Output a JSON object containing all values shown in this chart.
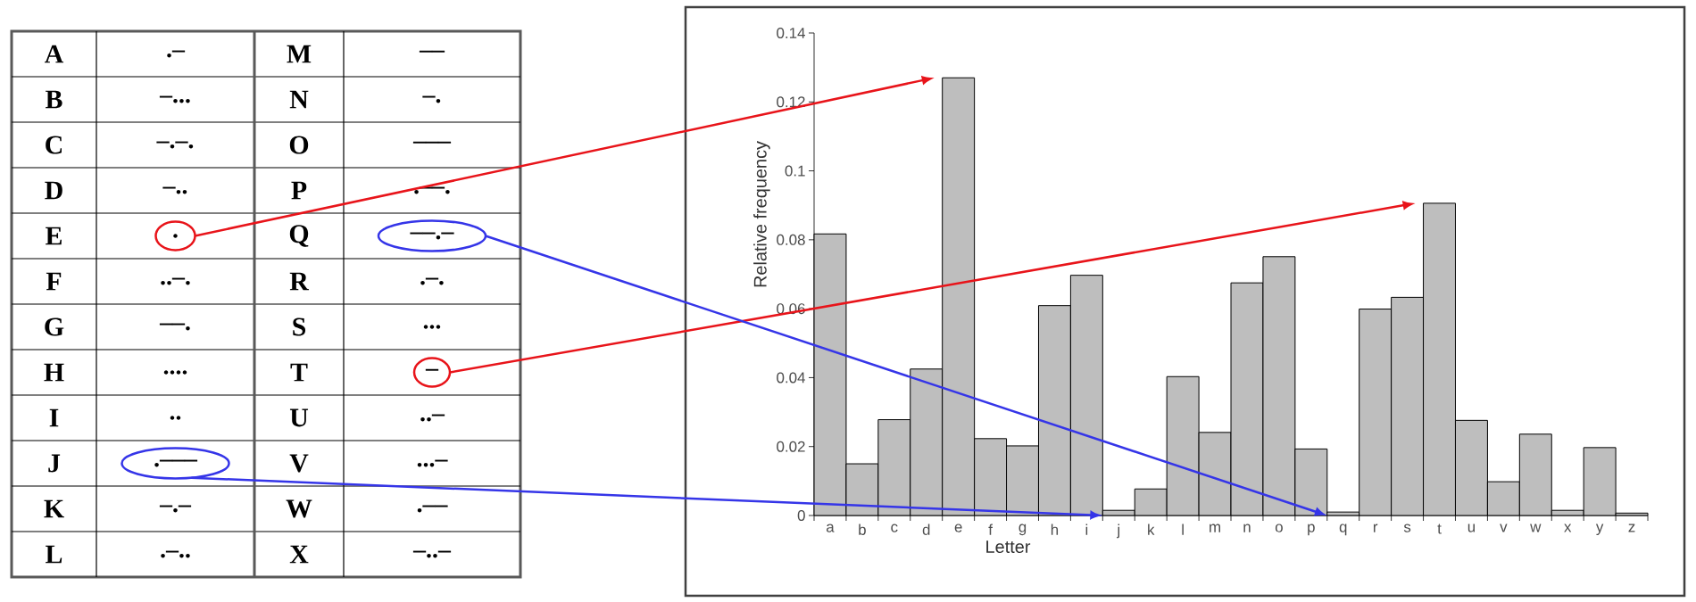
{
  "chart_data": [
    {
      "type": "other",
      "annotations": [
        "A",
        ".–",
        "M",
        "––",
        "B",
        "–...",
        "N",
        "–.",
        "C",
        "–.–.",
        "O",
        "–––",
        "D",
        "–..",
        "P",
        ".––.",
        "E",
        ".",
        "Q",
        "––.–",
        "F",
        "..–.",
        "R",
        ".–.",
        "G",
        "––.",
        "S",
        "...",
        "H",
        "....",
        "T",
        "–",
        "I",
        "..",
        "U",
        "..–",
        "J",
        ".–––",
        "V",
        "...–",
        "K",
        "–.–",
        "W",
        ".––",
        "L",
        ".–..",
        "X",
        "–..–"
      ]
    },
    {
      "type": "bar",
      "xlabel": "Letter",
      "ylabel": "Relative frequency",
      "color": "#bebebe",
      "categories": [
        "a",
        "b",
        "c",
        "d",
        "e",
        "f",
        "g",
        "h",
        "i",
        "j",
        "k",
        "l",
        "m",
        "n",
        "o",
        "p",
        "q",
        "r",
        "s",
        "t",
        "u",
        "v",
        "w",
        "x",
        "y",
        "z"
      ],
      "values": [
        0.0817,
        0.015,
        0.0278,
        0.0425,
        0.127,
        0.0223,
        0.0202,
        0.0609,
        0.0697,
        0.0015,
        0.0077,
        0.0403,
        0.0241,
        0.0675,
        0.0751,
        0.0193,
        0.001,
        0.0599,
        0.0633,
        0.0906,
        0.0276,
        0.0098,
        0.0236,
        0.0015,
        0.0197,
        0.0007
      ],
      "ylim": [
        0,
        0.14
      ],
      "yticks": [
        0,
        0.02,
        0.04,
        0.06,
        0.08,
        0.1,
        0.12,
        0.14
      ]
    }
  ]
}
